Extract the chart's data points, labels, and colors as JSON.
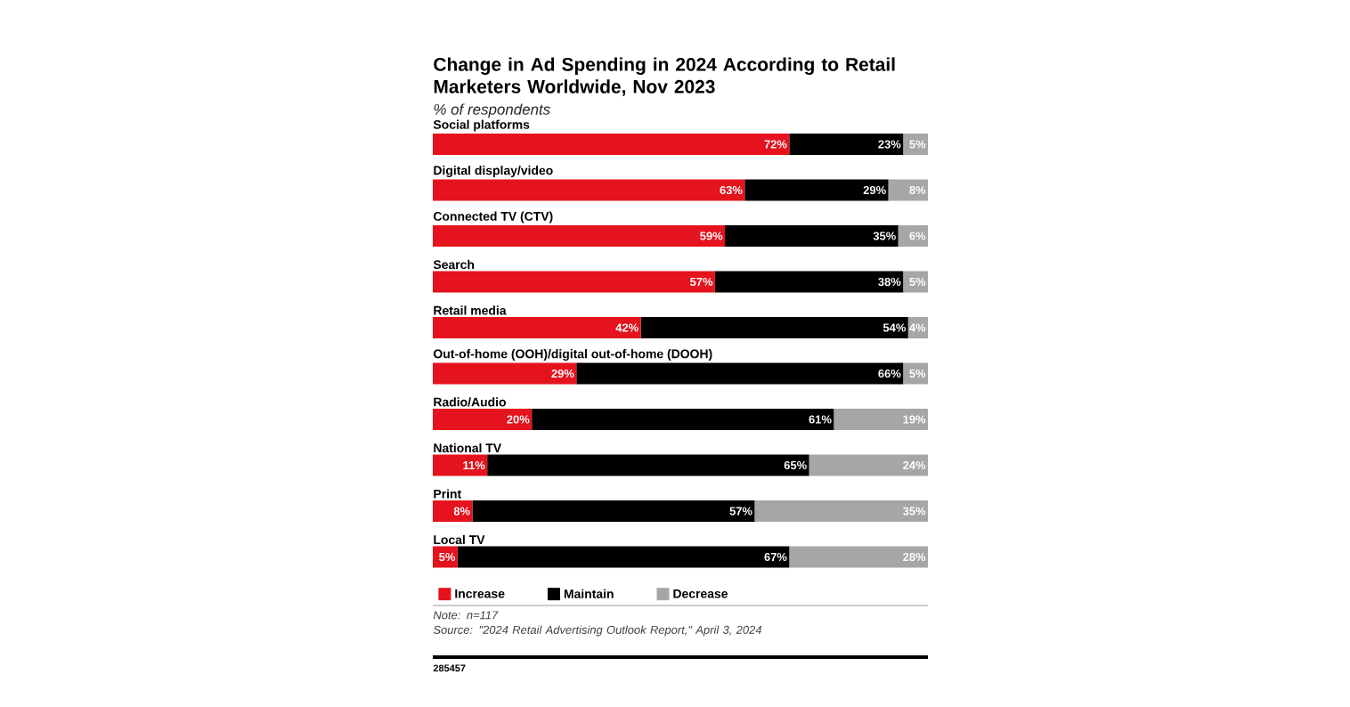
{
  "chart_data": {
    "type": "bar",
    "orientation": "horizontal",
    "stacked": true,
    "title": "Change in Ad Spending in 2024 According to Retail Marketers Worldwide, Nov 2023",
    "subtitle": "% of respondents",
    "categories": [
      "Social platforms",
      "Digital display/video",
      "Connected TV (CTV)",
      "Search",
      "Retail media",
      "Out-of-home (OOH)/digital out-of-home (DOOH)",
      "Radio/Audio",
      "National TV",
      "Print",
      "Local TV"
    ],
    "series": [
      {
        "name": "Increase",
        "color": "#e4131d",
        "values": [
          72,
          63,
          59,
          57,
          42,
          29,
          20,
          11,
          8,
          5
        ],
        "value_labels": [
          "72%",
          "63%",
          "59%",
          "57%",
          "42%",
          "29%",
          "20%",
          "11%",
          "8%",
          "5%"
        ]
      },
      {
        "name": "Maintain",
        "color": "#000000",
        "values": [
          23,
          29,
          35,
          38,
          54,
          66,
          61,
          65,
          57,
          67
        ],
        "value_labels": [
          "23%",
          "29%",
          "35%",
          "38%",
          "54%",
          "66%",
          "61%",
          "65%",
          "57%",
          "67%"
        ]
      },
      {
        "name": "Decrease",
        "color": "#a6a6a6",
        "values": [
          5,
          8,
          6,
          5,
          4,
          5,
          19,
          24,
          35,
          28
        ],
        "value_labels": [
          "5%",
          "8%",
          "6%",
          "5%",
          "4%",
          "5%",
          "19%",
          "24%",
          "35%",
          "28%"
        ]
      }
    ],
    "legend": "bottom left",
    "annotations": [
      "Note: n=117",
      "Source: \"2024 Retail Advertising Outlook Report,\" April 3, 2024",
      "285457"
    ]
  }
}
